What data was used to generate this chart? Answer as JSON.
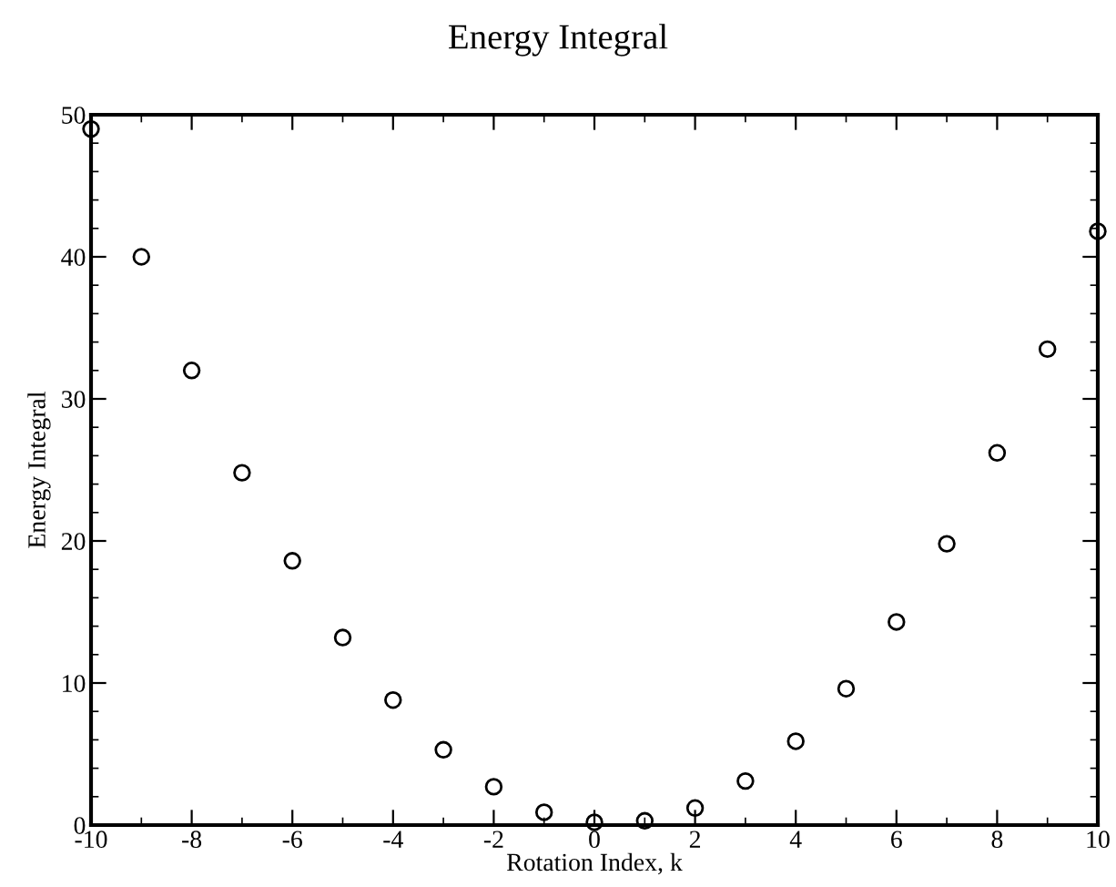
{
  "chart_data": {
    "type": "scatter",
    "title": "Energy Integral",
    "xlabel": "Rotation Index, k",
    "ylabel": "Energy Integral",
    "x": [
      -10,
      -9,
      -8,
      -7,
      -6,
      -5,
      -4,
      -3,
      -2,
      -1,
      0,
      1,
      2,
      3,
      4,
      5,
      6,
      7,
      8,
      9,
      10
    ],
    "series": [
      {
        "color": "#000000",
        "values": [
          49.0,
          40.0,
          32.0,
          24.8,
          18.6,
          13.2,
          8.8,
          5.3,
          2.7,
          0.9,
          0.2,
          0.3,
          1.2,
          3.1,
          5.9,
          9.6,
          14.3,
          19.8,
          26.2,
          33.5,
          41.8
        ]
      }
    ],
    "marker": "circle",
    "xlim": [
      -10,
      10
    ],
    "ylim": [
      0,
      50
    ],
    "xticks": [
      -10,
      -8,
      -6,
      -4,
      -2,
      0,
      2,
      4,
      6,
      8,
      10
    ],
    "yticks": [
      0,
      10,
      20,
      30,
      40,
      50
    ],
    "grid": false,
    "legend": false
  }
}
